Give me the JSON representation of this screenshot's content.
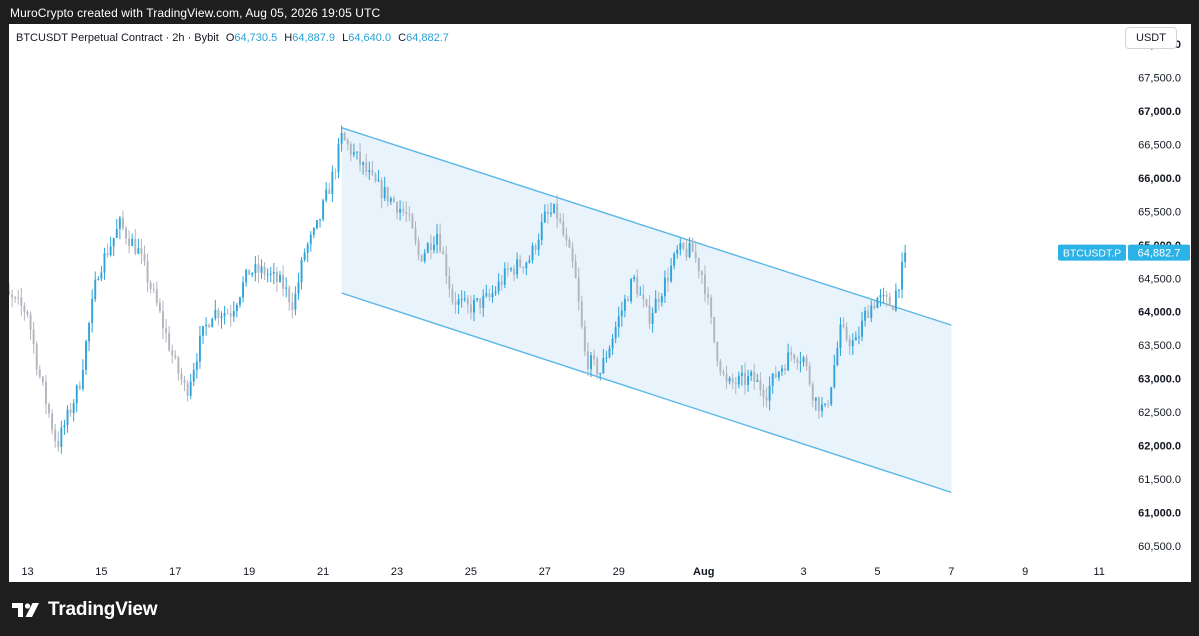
{
  "caption": "MuroCrypto created with TradingView.com, Aug 05, 2026 19:05 UTC",
  "header": {
    "symbol": "BTCUSDT Perpetual Contract · 2h · Bybit",
    "o_label": "O",
    "o_value": "64,730.5",
    "h_label": "H",
    "h_value": "64,887.9",
    "l_label": "L",
    "l_value": "64,640.0",
    "c_label": "C",
    "c_value": "64,882.7"
  },
  "currency": "USDT",
  "price_tag": {
    "symbol": "BTCUSDT.P",
    "value": "64,882.7"
  },
  "footer": {
    "brand": "TradingView"
  },
  "colors": {
    "up": "#2fa4da",
    "down": "#b2b5be",
    "channel_line": "#5ab7e6",
    "channel_fill": "#e4f1fb",
    "tag": "#2bb2e6"
  },
  "chart_data": {
    "type": "candlestick",
    "title": "",
    "xlabel": "",
    "ylabel": "",
    "y_ticks": [
      "60,500.0",
      "61,000.0",
      "61,500.0",
      "62,000.0",
      "62,500.0",
      "63,000.0",
      "63,500.0",
      "64,000.0",
      "64,500.0",
      "65,000.0",
      "65,500.0",
      "66,000.0",
      "66,500.0",
      "67,000.0",
      "67,500.0",
      "68,000.0"
    ],
    "y_tick_values": [
      60500,
      61000,
      61500,
      62000,
      62500,
      63000,
      63500,
      64000,
      64500,
      65000,
      65500,
      66000,
      66500,
      67000,
      67500,
      68000
    ],
    "ylim": [
      60170,
      68300
    ],
    "x_ticks": [
      {
        "label": "13",
        "day": 13
      },
      {
        "label": "15",
        "day": 15
      },
      {
        "label": "17",
        "day": 17
      },
      {
        "label": "19",
        "day": 19
      },
      {
        "label": "21",
        "day": 21
      },
      {
        "label": "23",
        "day": 23
      },
      {
        "label": "25",
        "day": 25
      },
      {
        "label": "27",
        "day": 27
      },
      {
        "label": "29",
        "day": 29
      },
      {
        "label": "Aug",
        "day": 31.3
      },
      {
        "label": "3",
        "day": 34
      },
      {
        "label": "5",
        "day": 36
      },
      {
        "label": "7",
        "day": 38
      },
      {
        "label": "9",
        "day": 40
      },
      {
        "label": "11",
        "day": 42
      }
    ],
    "x_range_days": [
      12.5,
      42.7
    ],
    "last_price": 64882.7,
    "key_points": [
      {
        "day": 12.0,
        "price": 64400
      },
      {
        "day": 13.0,
        "price": 64000
      },
      {
        "day": 13.3,
        "price": 63100
      },
      {
        "day": 13.8,
        "price": 62000
      },
      {
        "day": 14.4,
        "price": 62900
      },
      {
        "day": 14.9,
        "price": 64600
      },
      {
        "day": 15.5,
        "price": 65300
      },
      {
        "day": 16.0,
        "price": 64900
      },
      {
        "day": 16.5,
        "price": 64100
      },
      {
        "day": 17.0,
        "price": 63200
      },
      {
        "day": 17.3,
        "price": 62800
      },
      {
        "day": 17.7,
        "price": 63600
      },
      {
        "day": 18.0,
        "price": 64000
      },
      {
        "day": 18.5,
        "price": 64000
      },
      {
        "day": 19.0,
        "price": 64600
      },
      {
        "day": 19.4,
        "price": 64600
      },
      {
        "day": 19.9,
        "price": 64400
      },
      {
        "day": 20.2,
        "price": 64100
      },
      {
        "day": 20.5,
        "price": 64900
      },
      {
        "day": 20.8,
        "price": 65200
      },
      {
        "day": 21.3,
        "price": 66100
      },
      {
        "day": 21.5,
        "price": 66600
      },
      {
        "day": 21.9,
        "price": 66300
      },
      {
        "day": 22.4,
        "price": 65900
      },
      {
        "day": 23.0,
        "price": 65600
      },
      {
        "day": 23.3,
        "price": 65400
      },
      {
        "day": 23.6,
        "price": 64800
      },
      {
        "day": 24.1,
        "price": 65200
      },
      {
        "day": 24.5,
        "price": 64200
      },
      {
        "day": 24.9,
        "price": 64050
      },
      {
        "day": 25.5,
        "price": 64200
      },
      {
        "day": 26.0,
        "price": 64600
      },
      {
        "day": 26.6,
        "price": 64800
      },
      {
        "day": 27.0,
        "price": 65400
      },
      {
        "day": 27.3,
        "price": 65500
      },
      {
        "day": 27.8,
        "price": 64600
      },
      {
        "day": 28.1,
        "price": 63300
      },
      {
        "day": 28.5,
        "price": 63100
      },
      {
        "day": 29.0,
        "price": 63900
      },
      {
        "day": 29.4,
        "price": 64500
      },
      {
        "day": 29.8,
        "price": 63900
      },
      {
        "day": 30.3,
        "price": 64500
      },
      {
        "day": 30.6,
        "price": 64900
      },
      {
        "day": 31.0,
        "price": 64900
      },
      {
        "day": 31.3,
        "price": 64500
      },
      {
        "day": 31.6,
        "price": 63500
      },
      {
        "day": 31.9,
        "price": 62900
      },
      {
        "day": 32.6,
        "price": 63000
      },
      {
        "day": 33.0,
        "price": 62800
      },
      {
        "day": 33.3,
        "price": 63100
      },
      {
        "day": 33.7,
        "price": 63400
      },
      {
        "day": 34.0,
        "price": 63300
      },
      {
        "day": 34.3,
        "price": 62700
      },
      {
        "day": 34.6,
        "price": 62500
      },
      {
        "day": 35.0,
        "price": 63700
      },
      {
        "day": 35.4,
        "price": 63500
      },
      {
        "day": 35.7,
        "price": 64000
      },
      {
        "day": 36.0,
        "price": 64200
      },
      {
        "day": 36.4,
        "price": 64100
      },
      {
        "day": 36.8,
        "price": 64883
      }
    ],
    "channel": {
      "upper": [
        {
          "day": 21.5,
          "price": 66750
        },
        {
          "day": 38.0,
          "price": 63800
        }
      ],
      "lower": [
        {
          "day": 21.5,
          "price": 64280
        },
        {
          "day": 38.0,
          "price": 61300
        }
      ]
    }
  }
}
